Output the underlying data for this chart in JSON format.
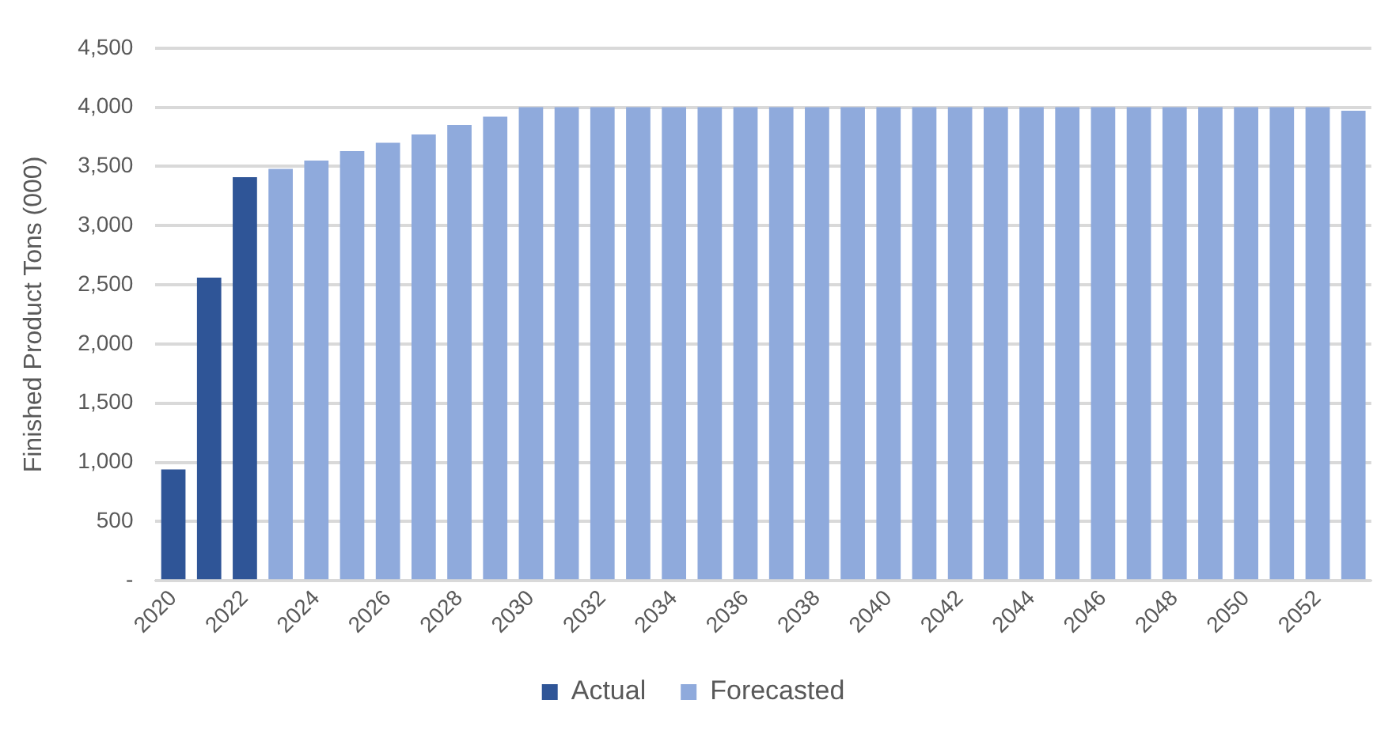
{
  "chart_data": {
    "type": "bar",
    "ylabel": "Finished Product Tons (000)",
    "categories": [
      "2020",
      null,
      "2022",
      null,
      "2024",
      null,
      "2026",
      null,
      "2028",
      null,
      "2030",
      null,
      "2032",
      null,
      "2034",
      null,
      "2036",
      null,
      "2038",
      null,
      "2040",
      null,
      "2042",
      null,
      "2044",
      null,
      "2046",
      null,
      "2048",
      null,
      "2050",
      null,
      "2052",
      null
    ],
    "series": [
      {
        "name": "Actual",
        "color": "#2f5597",
        "values": [
          940,
          2560,
          3410,
          null,
          null,
          null,
          null,
          null,
          null,
          null,
          null,
          null,
          null,
          null,
          null,
          null,
          null,
          null,
          null,
          null,
          null,
          null,
          null,
          null,
          null,
          null,
          null,
          null,
          null,
          null,
          null,
          null,
          null,
          null
        ]
      },
      {
        "name": "Forecasted",
        "color": "#8faadc",
        "values": [
          null,
          null,
          null,
          3480,
          3550,
          3630,
          3700,
          3770,
          3850,
          3920,
          4000,
          4000,
          4000,
          4000,
          4000,
          4000,
          4000,
          4000,
          4000,
          4000,
          4000,
          4000,
          4000,
          4000,
          4000,
          4000,
          4000,
          4000,
          4000,
          4000,
          4000,
          4000,
          4000,
          3970
        ]
      }
    ],
    "ylim": [
      0,
      4500
    ],
    "yticks": [
      {
        "value": 0,
        "label": "-"
      },
      500,
      {
        "value": 1000,
        "label": "1,000"
      },
      {
        "value": 1500,
        "label": "1,500"
      },
      {
        "value": 2000,
        "label": "2,000"
      },
      {
        "value": 2500,
        "label": "2,500"
      },
      {
        "value": 3000,
        "label": "3,000"
      },
      {
        "value": 3500,
        "label": "3,500"
      },
      {
        "value": 4000,
        "label": "4,000"
      },
      {
        "value": 4500,
        "label": "4,500"
      }
    ],
    "grid": "y",
    "legend": "bottom"
  }
}
